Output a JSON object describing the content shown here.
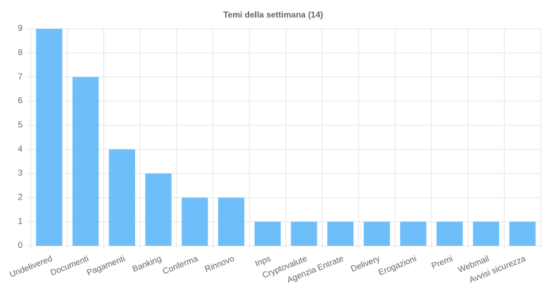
{
  "chart_data": {
    "type": "bar",
    "title": "Temi della settimana (14)",
    "categories": [
      "Undelivered",
      "Documenti",
      "Pagamenti",
      "Banking",
      "Conferma",
      "Rinnovo",
      "Inps",
      "Cryptovalute",
      "Agenzia Entrate",
      "Delivery",
      "Erogazioni",
      "Premi",
      "Webmail",
      "Avvisi sicurezza"
    ],
    "values": [
      9,
      7,
      4,
      3,
      2,
      2,
      1,
      1,
      1,
      1,
      1,
      1,
      1,
      1
    ],
    "color": "#6ebef9",
    "ylim": [
      0,
      9
    ],
    "yticks": [
      0,
      1,
      2,
      3,
      4,
      5,
      6,
      7,
      8,
      9
    ],
    "grid": true
  }
}
